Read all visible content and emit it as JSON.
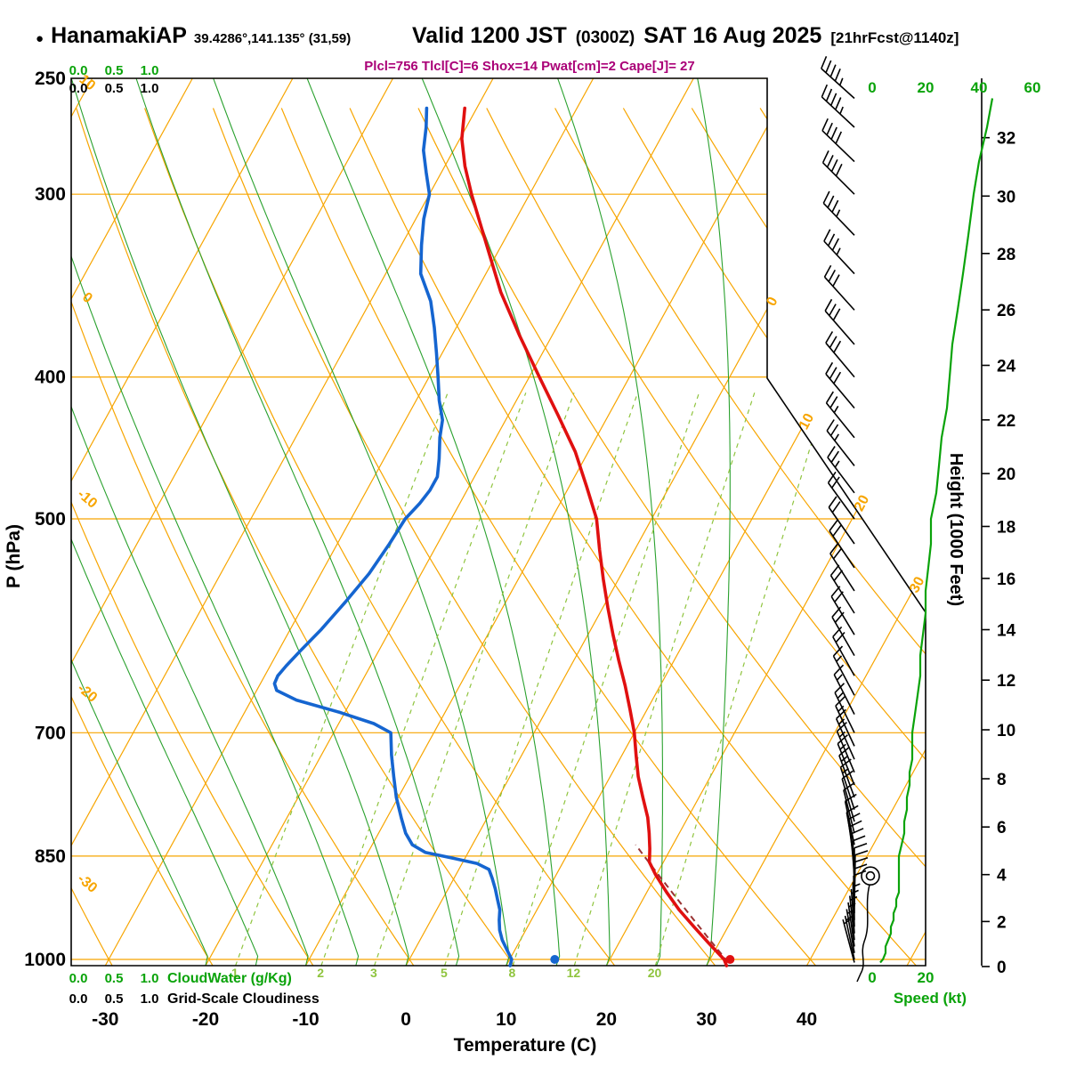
{
  "header": {
    "station": "HanamakiAP",
    "coords": "39.4286°,141.135° (31,59)",
    "valid_main": "Valid 1200 JST",
    "valid_z": "(0300Z)",
    "valid_date": "SAT 16 Aug 2025",
    "fcst": "[21hrFcst@1140z]",
    "indices": "Plcl=756 Tlcl[C]=6 Shox=14 Pwat[cm]=2 Cape[J]= 27"
  },
  "colors": {
    "grid_orange": "#f7a500",
    "moist_green": "#2aa12e",
    "mixing_green": "#8fc43e",
    "temp_red": "#e01010",
    "dewpoint_blue": "#1565d0",
    "parcel_maroon": "#9a3434",
    "speed_green": "#0aa30a",
    "text_green": "#0aa30a",
    "indices_magenta": "#aa0077",
    "frame_black": "#000000"
  },
  "axes": {
    "pressure_label": "P (hPa)",
    "pressure_ticks": [
      250,
      300,
      400,
      500,
      700,
      850,
      1000
    ],
    "temperature_label": "Temperature (C)",
    "temperature_ticks": [
      -30,
      -20,
      -10,
      0,
      10,
      20,
      30,
      40
    ],
    "height_label": "Height (1000 Feet)",
    "height_ticks_kft": [
      0,
      2,
      4,
      6,
      8,
      10,
      12,
      14,
      16,
      18,
      20,
      22,
      24,
      26,
      28,
      30,
      32
    ],
    "speed_label": "Speed (kt)",
    "speed_ticks_top": [
      0,
      20,
      40,
      60
    ],
    "speed_ticks_bottom": [
      0,
      20
    ],
    "cloudwater_label": "CloudWater (g/Kg)",
    "cloudiness_label": "Grid-Scale Cloudiness",
    "scale_values": [
      "0.0",
      "0.5",
      "1.0"
    ],
    "isotherm_cut_labels": [
      0,
      10,
      20,
      30
    ],
    "adiabat_edge_labels": [
      10,
      0,
      -10,
      -20,
      -30
    ],
    "mixing_ratio_labels": [
      1,
      2,
      3,
      5,
      8,
      12,
      20
    ]
  },
  "chart_data": {
    "type": "line",
    "subtype": "skew-t-log-p-sounding",
    "pressure_range_hpa": [
      1010,
      250
    ],
    "temperature_profile": [
      [
        1010,
        32.0
      ],
      [
        1000,
        31.4
      ],
      [
        975,
        29.0
      ],
      [
        950,
        26.6
      ],
      [
        925,
        24.2
      ],
      [
        900,
        22.0
      ],
      [
        875,
        19.9
      ],
      [
        858,
        18.6
      ],
      [
        850,
        18.3
      ],
      [
        840,
        17.9
      ],
      [
        820,
        17.0
      ],
      [
        800,
        16.0
      ],
      [
        775,
        14.4
      ],
      [
        750,
        12.8
      ],
      [
        725,
        11.4
      ],
      [
        700,
        10.0
      ],
      [
        675,
        8.3
      ],
      [
        650,
        6.5
      ],
      [
        625,
        4.5
      ],
      [
        600,
        2.5
      ],
      [
        575,
        0.5
      ],
      [
        550,
        -1.5
      ],
      [
        525,
        -3.5
      ],
      [
        500,
        -5.5
      ],
      [
        475,
        -8.3
      ],
      [
        450,
        -11.3
      ],
      [
        425,
        -15.0
      ],
      [
        400,
        -19.0
      ],
      [
        375,
        -23.2
      ],
      [
        350,
        -27.5
      ],
      [
        325,
        -31.5
      ],
      [
        300,
        -35.8
      ],
      [
        287,
        -38.0
      ],
      [
        275,
        -39.8
      ],
      [
        262,
        -41.2
      ]
    ],
    "dewpoint_profile": [
      [
        1010,
        10.4
      ],
      [
        1000,
        10.2
      ],
      [
        985,
        9.2
      ],
      [
        970,
        8.2
      ],
      [
        955,
        7.4
      ],
      [
        940,
        6.8
      ],
      [
        925,
        6.3
      ],
      [
        910,
        5.5
      ],
      [
        895,
        4.7
      ],
      [
        880,
        3.8
      ],
      [
        868,
        3.0
      ],
      [
        860,
        1.5
      ],
      [
        852,
        -1.5
      ],
      [
        845,
        -4.3
      ],
      [
        835,
        -6.0
      ],
      [
        820,
        -7.3
      ],
      [
        800,
        -8.6
      ],
      [
        775,
        -10.2
      ],
      [
        750,
        -11.6
      ],
      [
        725,
        -13.0
      ],
      [
        700,
        -14.3
      ],
      [
        690,
        -16.5
      ],
      [
        678,
        -20.5
      ],
      [
        665,
        -25.5
      ],
      [
        655,
        -28.0
      ],
      [
        648,
        -28.6
      ],
      [
        640,
        -28.7
      ],
      [
        630,
        -28.4
      ],
      [
        615,
        -27.8
      ],
      [
        595,
        -26.9
      ],
      [
        570,
        -26.0
      ],
      [
        545,
        -25.2
      ],
      [
        520,
        -24.8
      ],
      [
        500,
        -24.6
      ],
      [
        488,
        -24.0
      ],
      [
        478,
        -23.7
      ],
      [
        468,
        -23.7
      ],
      [
        455,
        -24.5
      ],
      [
        440,
        -25.6
      ],
      [
        428,
        -26.3
      ],
      [
        415,
        -27.7
      ],
      [
        400,
        -29.1
      ],
      [
        385,
        -30.6
      ],
      [
        370,
        -32.2
      ],
      [
        355,
        -34.0
      ],
      [
        340,
        -36.5
      ],
      [
        325,
        -38.0
      ],
      [
        312,
        -39.2
      ],
      [
        300,
        -40.0
      ],
      [
        290,
        -41.5
      ],
      [
        280,
        -43.0
      ],
      [
        270,
        -44.0
      ],
      [
        262,
        -45.0
      ]
    ],
    "parcel": {
      "p_start": 1005,
      "t_start": 32.0,
      "p_end": 835
    },
    "surface_markers": {
      "p": 1000,
      "temperature_c": 32.0,
      "dewpoint_c": 14.5
    },
    "station_symbol_p": 877,
    "wind": [
      [
        1005,
        165,
        3
      ],
      [
        1000,
        168,
        4
      ],
      [
        990,
        170,
        5
      ],
      [
        980,
        172,
        5
      ],
      [
        970,
        174,
        6
      ],
      [
        960,
        176,
        7
      ],
      [
        950,
        178,
        7
      ],
      [
        940,
        179,
        8
      ],
      [
        930,
        180,
        8
      ],
      [
        920,
        181,
        9
      ],
      [
        910,
        181,
        9
      ],
      [
        900,
        180,
        10
      ],
      [
        890,
        178,
        10
      ],
      [
        880,
        176,
        10
      ],
      [
        870,
        174,
        10
      ],
      [
        860,
        172,
        10
      ],
      [
        850,
        170,
        10
      ],
      [
        835,
        168,
        11
      ],
      [
        820,
        166,
        12
      ],
      [
        805,
        164,
        12
      ],
      [
        790,
        162,
        13
      ],
      [
        775,
        160,
        13
      ],
      [
        760,
        158,
        14
      ],
      [
        745,
        157,
        14
      ],
      [
        730,
        156,
        15
      ],
      [
        715,
        155,
        15
      ],
      [
        700,
        154,
        15
      ],
      [
        680,
        153,
        16
      ],
      [
        660,
        152,
        17
      ],
      [
        640,
        151,
        18
      ],
      [
        620,
        150,
        18
      ],
      [
        600,
        149,
        19
      ],
      [
        580,
        148,
        20
      ],
      [
        560,
        147,
        20
      ],
      [
        540,
        146,
        21
      ],
      [
        520,
        145,
        22
      ],
      [
        500,
        144,
        22
      ],
      [
        480,
        143,
        24
      ],
      [
        460,
        142,
        25
      ],
      [
        440,
        141,
        26
      ],
      [
        420,
        140,
        28
      ],
      [
        400,
        140,
        29
      ],
      [
        380,
        139,
        30
      ],
      [
        360,
        138,
        32
      ],
      [
        340,
        137,
        34
      ],
      [
        320,
        136,
        36
      ],
      [
        300,
        135,
        38
      ],
      [
        285,
        134,
        40
      ],
      [
        270,
        133,
        43
      ],
      [
        258,
        132,
        45
      ]
    ]
  }
}
